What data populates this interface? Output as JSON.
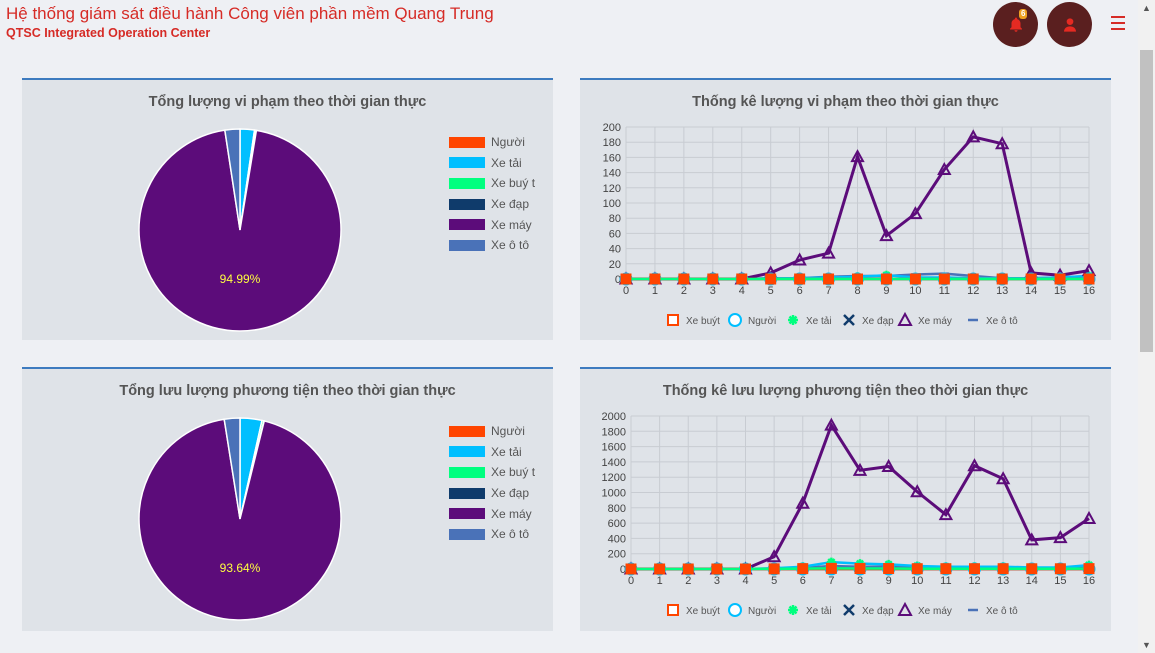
{
  "header": {
    "title": "Hệ thống giám sát điều hành Công viên phần mềm Quang Trung",
    "subtitle": "QTSC Integrated Operation Center",
    "notification_count": "6",
    "icons": [
      "bell-icon",
      "user-icon",
      "menu-icon"
    ],
    "accent_color": "#d62b26"
  },
  "colors": {
    "Người": "#ff4500",
    "Xe tải": "#00bfff",
    "Xe buýt": "#00ff7f",
    "Xe đạp": "#0f3b6b",
    "Xe máy": "#5c0c7a",
    "Xe ô tô": "#4a72b8"
  },
  "pie_legend": [
    "Người",
    "Xe tải",
    "Xe buý t",
    "Xe đạp",
    "Xe máy",
    "Xe ô tô"
  ],
  "line_legend": [
    "Xe buýt",
    "Người",
    "Xe tải",
    "Xe đạp",
    "Xe máy",
    "Xe ô tô"
  ],
  "panels": {
    "pie1": {
      "title": "Tổng lượng vi phạm theo thời gian thực"
    },
    "line1": {
      "title": "Thống kê lượng vi phạm theo thời gian thực"
    },
    "pie2": {
      "title": "Tổng lưu lượng phương tiện theo thời gian thực"
    },
    "line2": {
      "title": "Thống kê lưu lượng phương tiện theo thời gian thực"
    }
  },
  "chart_data": [
    {
      "type": "pie",
      "title": "Tổng lượng vi phạm theo thời gian thực",
      "slices": [
        {
          "name": "Người",
          "percent": 0.0
        },
        {
          "name": "Xe tải",
          "percent": 2.3
        },
        {
          "name": "Xe buýt",
          "percent": 0.2
        },
        {
          "name": "Xe đạp",
          "percent": 0.1
        },
        {
          "name": "Xe máy",
          "percent": 94.99
        },
        {
          "name": "Xe ô tô",
          "percent": 2.4
        }
      ],
      "data_label": "94.99%",
      "legend_position": "right"
    },
    {
      "type": "line",
      "title": "Thống kê lượng vi phạm theo thời gian thực",
      "x": [
        0,
        1,
        2,
        3,
        4,
        5,
        6,
        7,
        8,
        9,
        10,
        11,
        12,
        13,
        14,
        15,
        16
      ],
      "ylim": [
        0,
        200
      ],
      "yticks": [
        0,
        20,
        40,
        60,
        80,
        100,
        120,
        140,
        160,
        180,
        200
      ],
      "grid": true,
      "legend_position": "bottom",
      "series": [
        {
          "name": "Xe buýt",
          "values": [
            0,
            0,
            0,
            0,
            0,
            0,
            0,
            0,
            0,
            0,
            0,
            0,
            0,
            0,
            0,
            0,
            0
          ]
        },
        {
          "name": "Người",
          "values": [
            0,
            0,
            0,
            0,
            0,
            0,
            0,
            0,
            0,
            0,
            0,
            0,
            0,
            0,
            0,
            0,
            0
          ]
        },
        {
          "name": "Xe tải",
          "values": [
            0,
            0,
            0,
            0,
            0,
            1,
            1,
            2,
            3,
            5,
            2,
            2,
            1,
            1,
            1,
            2,
            4
          ]
        },
        {
          "name": "Xe đạp",
          "values": [
            0,
            0,
            0,
            0,
            0,
            0,
            0,
            0,
            0,
            0,
            0,
            0,
            0,
            0,
            0,
            0,
            0
          ]
        },
        {
          "name": "Xe máy",
          "values": [
            0,
            0,
            0,
            0,
            0,
            8,
            25,
            34,
            161,
            57,
            86,
            144,
            187,
            178,
            8,
            5,
            11
          ]
        },
        {
          "name": "Xe ô tô",
          "values": [
            0,
            0,
            0,
            0,
            0,
            1,
            1,
            3,
            4,
            4,
            6,
            7,
            4,
            1,
            1,
            2,
            4
          ]
        }
      ]
    },
    {
      "type": "pie",
      "title": "Tổng lưu lượng phương tiện theo thời gian thực",
      "slices": [
        {
          "name": "Người",
          "percent": 0.0
        },
        {
          "name": "Xe tải",
          "percent": 3.5
        },
        {
          "name": "Xe buýt",
          "percent": 0.3
        },
        {
          "name": "Xe đạp",
          "percent": 0.06
        },
        {
          "name": "Xe máy",
          "percent": 93.64
        },
        {
          "name": "Xe ô tô",
          "percent": 2.5
        }
      ],
      "data_label": "93.64%",
      "legend_position": "right"
    },
    {
      "type": "line",
      "title": "Thống kê lưu lượng phương tiện theo thời gian thực",
      "x": [
        0,
        1,
        2,
        3,
        4,
        5,
        6,
        7,
        8,
        9,
        10,
        11,
        12,
        13,
        14,
        15,
        16
      ],
      "ylim": [
        0,
        2000
      ],
      "yticks": [
        0,
        200,
        400,
        600,
        800,
        1000,
        1200,
        1400,
        1600,
        1800,
        2000
      ],
      "grid": true,
      "legend_position": "bottom",
      "series": [
        {
          "name": "Xe buýt",
          "values": [
            0,
            0,
            0,
            0,
            0,
            2,
            5,
            8,
            6,
            6,
            4,
            4,
            4,
            4,
            3,
            3,
            5
          ]
        },
        {
          "name": "Người",
          "values": [
            0,
            0,
            0,
            0,
            0,
            0,
            0,
            0,
            0,
            0,
            0,
            0,
            0,
            0,
            0,
            0,
            0
          ]
        },
        {
          "name": "Xe tải",
          "values": [
            0,
            0,
            0,
            0,
            0,
            10,
            30,
            90,
            70,
            60,
            40,
            30,
            30,
            30,
            20,
            20,
            50
          ]
        },
        {
          "name": "Xe đạp",
          "values": [
            0,
            0,
            0,
            0,
            0,
            0,
            0,
            0,
            0,
            0,
            0,
            0,
            0,
            0,
            0,
            0,
            0
          ]
        },
        {
          "name": "Xe máy",
          "values": [
            0,
            0,
            0,
            0,
            0,
            160,
            860,
            1880,
            1290,
            1340,
            1010,
            710,
            1350,
            1180,
            380,
            410,
            660
          ]
        },
        {
          "name": "Xe ô tô",
          "values": [
            0,
            0,
            0,
            0,
            0,
            5,
            15,
            40,
            30,
            30,
            25,
            20,
            20,
            20,
            15,
            15,
            30
          ]
        }
      ]
    }
  ]
}
